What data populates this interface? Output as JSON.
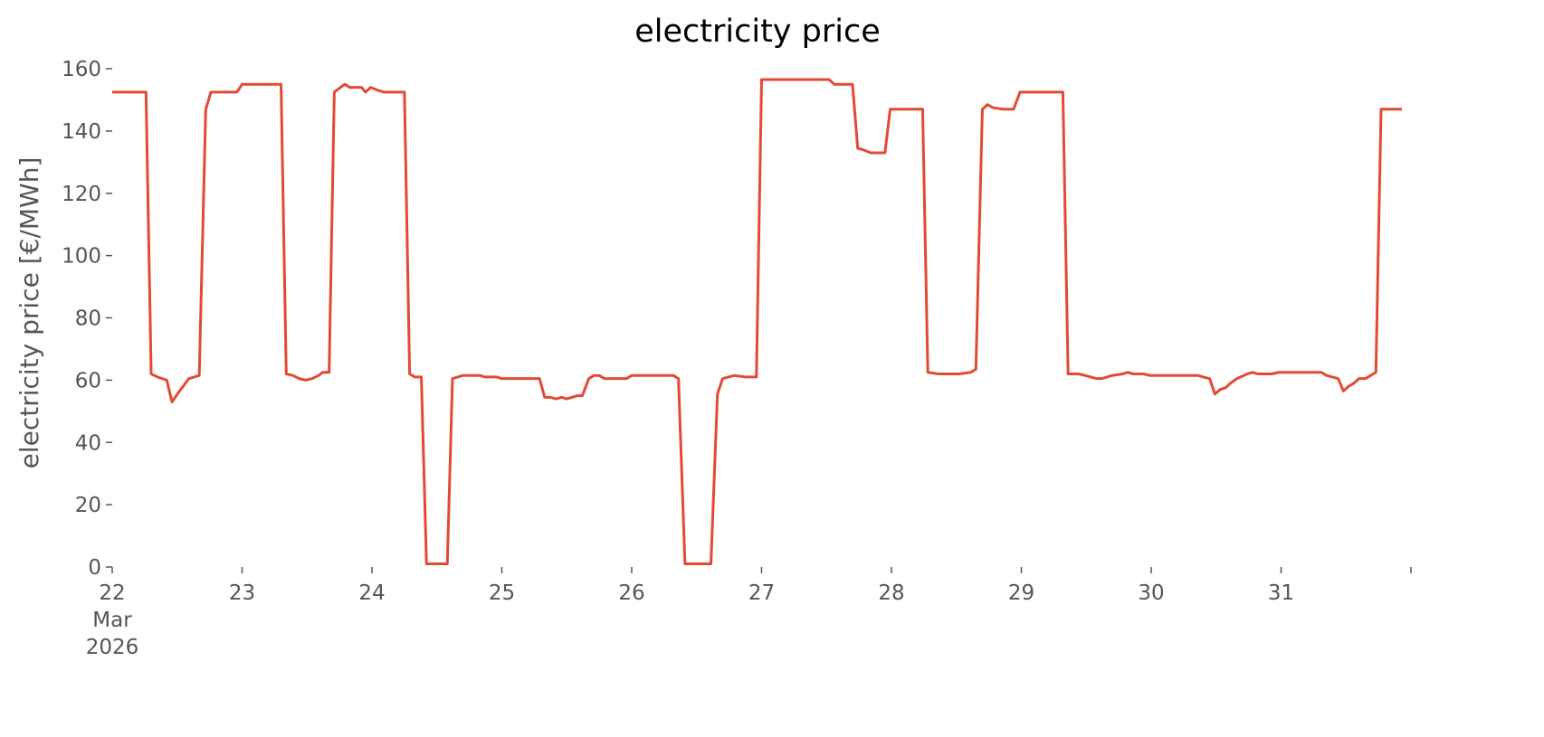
{
  "chart_data": {
    "type": "line",
    "title": "electricity price",
    "ylabel": "electricity price [€/MWh]",
    "x": [
      22.0,
      22.26,
      22.3,
      22.35,
      22.42,
      22.46,
      22.51,
      22.59,
      22.67,
      22.72,
      22.76,
      22.96,
      23.0,
      23.3,
      23.34,
      23.39,
      23.44,
      23.49,
      23.54,
      23.59,
      23.62,
      23.67,
      23.71,
      23.79,
      23.83,
      23.92,
      23.95,
      23.99,
      24.05,
      24.09,
      24.25,
      24.29,
      24.33,
      24.38,
      24.42,
      24.58,
      24.62,
      24.7,
      24.83,
      24.87,
      24.96,
      25.0,
      25.29,
      25.33,
      25.37,
      25.42,
      25.46,
      25.5,
      25.54,
      25.58,
      25.62,
      25.67,
      25.71,
      25.75,
      25.79,
      25.96,
      26.0,
      26.32,
      26.36,
      26.41,
      26.61,
      26.66,
      26.7,
      26.79,
      26.88,
      26.96,
      27.0,
      27.52,
      27.56,
      27.7,
      27.74,
      27.78,
      27.84,
      27.95,
      27.99,
      28.24,
      28.28,
      28.36,
      28.52,
      28.61,
      28.65,
      28.7,
      28.74,
      28.78,
      28.86,
      28.94,
      28.99,
      29.32,
      29.36,
      29.44,
      29.49,
      29.58,
      29.62,
      29.7,
      29.78,
      29.82,
      29.86,
      29.94,
      29.99,
      30.36,
      30.4,
      30.45,
      30.49,
      30.53,
      30.57,
      30.61,
      30.66,
      30.74,
      30.78,
      30.82,
      30.93,
      30.98,
      31.31,
      31.35,
      31.44,
      31.48,
      31.52,
      31.56,
      31.6,
      31.65,
      31.69,
      31.73,
      31.77,
      31.93
    ],
    "series": [
      {
        "name": "electricity price",
        "color": "#e24a33",
        "values": [
          152.5,
          152.5,
          62,
          61,
          60,
          53,
          56,
          60.5,
          61.5,
          147,
          152.5,
          152.5,
          155,
          155,
          62,
          61.5,
          60.5,
          60,
          60.5,
          61.5,
          62.5,
          62.5,
          152.5,
          155,
          154,
          154,
          152.5,
          154,
          153,
          152.5,
          152.5,
          62,
          61,
          61,
          1,
          1,
          60.5,
          61.5,
          61.5,
          61,
          61,
          60.5,
          60.5,
          54.5,
          54.5,
          54,
          54.5,
          54,
          54.5,
          55,
          55,
          60.5,
          61.5,
          61.5,
          60.5,
          60.5,
          61.5,
          61.5,
          60.5,
          1,
          1,
          55.5,
          60.5,
          61.5,
          61,
          61,
          156.5,
          156.5,
          155,
          155,
          134.5,
          134,
          133,
          133,
          147,
          147,
          62.5,
          62,
          62,
          62.5,
          63.5,
          147,
          148.5,
          147.5,
          147,
          147,
          152.5,
          152.5,
          62,
          62,
          61.5,
          60.5,
          60.5,
          61.5,
          62,
          62.5,
          62,
          62,
          61.5,
          61.5,
          61,
          60.5,
          55.5,
          57,
          57.5,
          59,
          60.5,
          62,
          62.5,
          62,
          62,
          62.5,
          62.5,
          61.5,
          60.5,
          56.5,
          58,
          59,
          60.5,
          60.5,
          61.5,
          62.5,
          147,
          147
        ]
      }
    ],
    "xlim": [
      22,
      32
    ],
    "xticks": [
      {
        "value": 22,
        "label": "22\nMar\n2026"
      },
      23,
      24,
      25,
      26,
      27,
      28,
      29,
      30,
      31,
      {
        "value": 32,
        "label": null
      }
    ],
    "ylim": [
      0,
      160
    ],
    "yticks": [
      0,
      20,
      40,
      60,
      80,
      100,
      120,
      140,
      160
    ],
    "grid": false
  }
}
